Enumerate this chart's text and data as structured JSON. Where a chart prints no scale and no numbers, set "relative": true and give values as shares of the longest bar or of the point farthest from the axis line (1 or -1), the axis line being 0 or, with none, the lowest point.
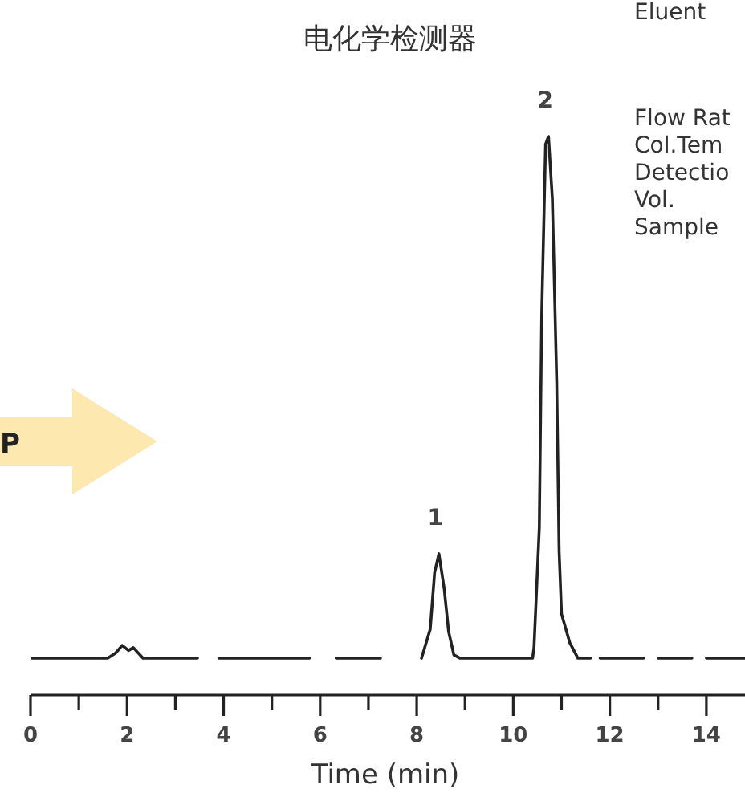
{
  "chart_data": {
    "type": "line",
    "title": "电化学检测器",
    "xlabel": "Time (min)",
    "relative": true,
    "xlim": [
      0,
      14.8
    ],
    "xticks": [
      0,
      {
        "value": 1,
        "label": null
      },
      2,
      {
        "value": 3,
        "label": null
      },
      4,
      {
        "value": 5,
        "label": null
      },
      6,
      {
        "value": 7,
        "label": null
      },
      8,
      {
        "value": 9,
        "label": null
      },
      10,
      {
        "value": 11,
        "label": null
      },
      12,
      {
        "value": 13,
        "label": null
      },
      14
    ],
    "x": [
      0.03,
      1.6,
      1.76,
      1.9,
      2.03,
      2.13,
      2.33,
      3.46,
      3.7,
      3.9,
      5.78,
      6.05,
      6.33,
      7.25,
      7.6,
      8.1,
      8.28,
      8.37,
      8.46,
      8.57,
      8.66,
      8.77,
      8.9,
      10.4,
      10.43,
      10.54,
      10.59,
      10.67,
      10.73,
      10.81,
      10.9,
      10.95,
      11.0,
      11.17,
      11.34,
      11.6,
      11.65,
      11.8,
      12.7,
      12.85,
      13.0,
      13.7,
      13.85,
      14.0,
      14.8
    ],
    "series": [
      {
        "color": "#222222",
        "values": [
          0.066,
          0.066,
          0.075,
          0.089,
          0.08,
          0.085,
          0.066,
          0.066,
          null,
          0.066,
          0.066,
          null,
          0.066,
          0.066,
          null,
          0.066,
          0.118,
          0.219,
          0.253,
          0.19,
          0.114,
          0.072,
          0.066,
          0.066,
          0.085,
          0.3,
          0.682,
          0.986,
          1,
          0.888,
          0.561,
          0.257,
          0.145,
          0.094,
          0.066,
          0.066,
          null,
          0.066,
          0.066,
          null,
          0.066,
          0.066,
          null,
          0.066,
          0.066
        ]
      }
    ],
    "annotations": [
      "P",
      "Eluent",
      "Flow Rat",
      "Col.Tem",
      "Detectio",
      "Vol.",
      "Sample",
      {
        "text": "1",
        "x": 8.45,
        "y": 0.253
      },
      {
        "text": "2",
        "x": 10.73,
        "y": 1
      }
    ]
  }
}
